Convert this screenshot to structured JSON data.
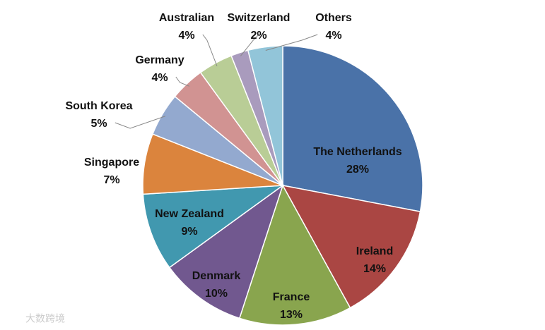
{
  "chart_data": {
    "type": "pie",
    "categories": [
      "The Netherlands",
      "Ireland",
      "France",
      "Denmark",
      "New Zealand",
      "Singapore",
      "South Korea",
      "Germany",
      "Australian",
      "Switzerland",
      "Others"
    ],
    "values": [
      28,
      14,
      13,
      10,
      9,
      7,
      5,
      4,
      4,
      2,
      4
    ],
    "value_labels": [
      "28%",
      "14%",
      "13%",
      "10%",
      "9%",
      "7%",
      "5%",
      "4%",
      "4%",
      "2%",
      "4%"
    ],
    "colors": [
      "#4a72a8",
      "#aa4643",
      "#89a54e",
      "#71588f",
      "#4198af",
      "#db843d",
      "#93a9cf",
      "#d19392",
      "#b9cd96",
      "#a99bbd",
      "#92c5d9"
    ]
  },
  "watermark": "大数跨境"
}
